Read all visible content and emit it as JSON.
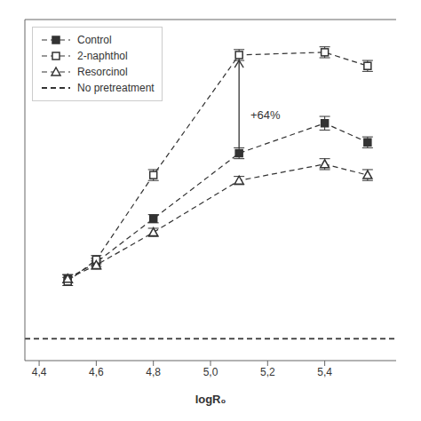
{
  "chart_data": {
    "type": "line",
    "color": "#333333",
    "line_style": "dashed",
    "xlabel": "logR₀",
    "xlim": [
      4.35,
      5.65
    ],
    "xticks": [
      {
        "value": 4.4,
        "label": "4,4"
      },
      {
        "value": 4.6,
        "label": "4,6"
      },
      {
        "value": 4.8,
        "label": "4,8"
      },
      {
        "value": 5.0,
        "label": "5,0"
      },
      {
        "value": 5.2,
        "label": "5,2"
      },
      {
        "value": 5.4,
        "label": "5,4"
      }
    ],
    "ylim": [
      -20,
      105
    ],
    "yticks": [],
    "tick_labels": "x",
    "grid": false,
    "legend": "upper left",
    "series": [
      {
        "name": "Control",
        "marker": "filled_square",
        "x": [
          4.5,
          4.6,
          4.8,
          5.1,
          5.4,
          5.55
        ],
        "values": [
          10,
          16,
          32,
          56,
          67,
          60
        ],
        "yerr": [
          1.5,
          1.5,
          1.5,
          2,
          2.5,
          2
        ]
      },
      {
        "name": "2-naphthol",
        "marker": "open_square",
        "x": [
          4.5,
          4.6,
          4.8,
          5.1,
          5.4,
          5.55
        ],
        "values": [
          9,
          17,
          48,
          92,
          93,
          88
        ],
        "yerr": [
          1.5,
          1.5,
          2,
          2,
          2,
          2
        ]
      },
      {
        "name": "Resorcinol",
        "marker": "open_triangle",
        "x": [
          4.5,
          4.6,
          4.8,
          5.1,
          5.4,
          5.55
        ],
        "values": [
          10,
          15,
          27,
          46,
          52,
          48
        ],
        "yerr": [
          1.5,
          1.5,
          1.5,
          1.5,
          2,
          2
        ]
      }
    ],
    "reference_lines": [
      {
        "name": "No pretreatment",
        "y": -12,
        "line_style": "dashed"
      }
    ],
    "annotations": [
      {
        "type": "arrow",
        "x": 5.1,
        "y_start": 58,
        "y_end": 90
      },
      {
        "type": "text",
        "text": "+64%",
        "x": 5.14,
        "y": 70
      }
    ]
  }
}
